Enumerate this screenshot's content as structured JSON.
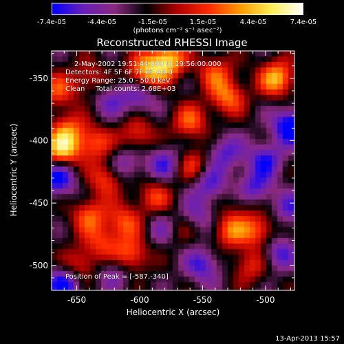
{
  "chart_data": {
    "type": "heatmap",
    "title": "Reconstructed RHESSI Image",
    "xlabel": "Heliocentric X (arcsec)",
    "ylabel": "Heliocentric Y (arcsec)",
    "xlim": [
      -670,
      -477
    ],
    "ylim": [
      -520,
      -328
    ],
    "xticks": [
      -650,
      -600,
      -550,
      -500
    ],
    "yticks": [
      -500,
      -450,
      -400,
      -350
    ],
    "colorbar": {
      "ticks": [
        "-7.4e-05",
        "-4.4e-05",
        "-1.5e-05",
        "1.5e-05",
        "4.4e-05",
        "7.4e-05"
      ],
      "range": [
        -7.4e-05,
        7.4e-05
      ],
      "unit_label": "(photons cm⁻² s⁻¹ asec⁻²)",
      "colormap": [
        "#0000ff",
        "#6a1fb8",
        "#8a2a80",
        "#000000",
        "#b00000",
        "#ff2a00",
        "#ff9900",
        "#ffee55",
        "#ffffff"
      ]
    },
    "annotations": {
      "time": "2-May-2002 19:51:44.000 to 19:56:00.000",
      "detectors": "Detectors: 4F 5F 6F 7F 8F  Att 0",
      "energy": "Energy Range: 25.0 - 50.0 keV",
      "method": "Clean     Total counts: 2.68E+03",
      "peak": "Position of Peak = [-587,-340]"
    },
    "peak": {
      "x": -587,
      "y": -340
    },
    "sources": [
      {
        "x": -578,
        "y": -336,
        "v": 7.4e-05
      },
      {
        "x": -596,
        "y": -345,
        "v": 6e-05
      },
      {
        "x": -662,
        "y": -408,
        "v": 6.5e-05
      },
      {
        "x": -657,
        "y": -392,
        "v": 4.5e-05
      },
      {
        "x": -636,
        "y": -402,
        "v": 4.2e-05
      },
      {
        "x": -602,
        "y": -395,
        "v": 3.8e-05
      },
      {
        "x": -626,
        "y": -430,
        "v": 4.6e-05
      },
      {
        "x": -640,
        "y": -460,
        "v": 4.5e-05
      },
      {
        "x": -612,
        "y": -465,
        "v": 4.2e-05
      },
      {
        "x": -607,
        "y": -492,
        "v": 5e-05
      },
      {
        "x": -648,
        "y": -500,
        "v": 3.8e-05
      },
      {
        "x": -630,
        "y": -482,
        "v": 3.5e-05
      },
      {
        "x": -560,
        "y": -385,
        "v": 4.5e-05
      },
      {
        "x": -530,
        "y": -365,
        "v": 5e-05
      },
      {
        "x": -540,
        "y": -345,
        "v": 4e-05
      },
      {
        "x": -491,
        "y": -350,
        "v": 6.5e-05
      },
      {
        "x": -558,
        "y": -420,
        "v": 3.8e-05
      },
      {
        "x": -588,
        "y": -445,
        "v": 3.8e-05
      },
      {
        "x": -528,
        "y": -472,
        "v": 4.8e-05
      },
      {
        "x": -505,
        "y": -472,
        "v": 4.5e-05
      },
      {
        "x": -512,
        "y": -500,
        "v": 3.5e-05
      },
      {
        "x": -516,
        "y": -447,
        "v": 3e-05
      },
      {
        "x": -640,
        "y": -350,
        "v": 3e-05
      },
      {
        "x": -665,
        "y": -360,
        "v": 4e-05
      },
      {
        "x": -570,
        "y": -470,
        "v": 3e-05
      },
      {
        "x": -500,
        "y": -415,
        "v": -4.4e-05
      },
      {
        "x": -510,
        "y": -440,
        "v": -5.5e-05
      },
      {
        "x": -480,
        "y": -388,
        "v": -6.5e-05
      },
      {
        "x": -545,
        "y": -435,
        "v": -4e-05
      },
      {
        "x": -580,
        "y": -418,
        "v": -4e-05
      },
      {
        "x": -612,
        "y": -420,
        "v": -3.5e-05
      },
      {
        "x": -665,
        "y": -430,
        "v": -5.5e-05
      },
      {
        "x": -550,
        "y": -500,
        "v": -4.2e-05
      },
      {
        "x": -600,
        "y": -365,
        "v": -3.5e-05
      },
      {
        "x": -623,
        "y": -367,
        "v": -3e-05
      },
      {
        "x": -580,
        "y": -470,
        "v": -3.5e-05
      },
      {
        "x": -490,
        "y": -490,
        "v": -4e-05
      },
      {
        "x": -660,
        "y": -515,
        "v": -5.5e-05
      },
      {
        "x": -532,
        "y": -410,
        "v": -3.8e-05
      },
      {
        "x": -480,
        "y": -455,
        "v": -3.5e-05
      },
      {
        "x": -555,
        "y": -460,
        "v": -3e-05
      },
      {
        "x": -620,
        "y": -505,
        "v": -3e-05
      }
    ]
  },
  "footer": {
    "date": "13-Apr-2013 15:57"
  }
}
